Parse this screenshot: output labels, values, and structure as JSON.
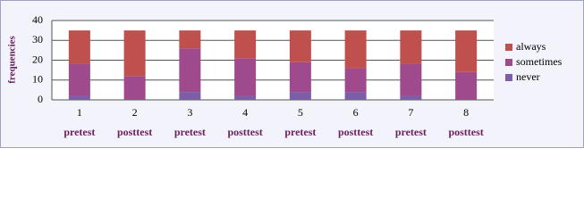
{
  "chart_data": {
    "type": "stacked_bar",
    "y_label": "frequencies",
    "categories": [
      "1",
      "2",
      "3",
      "4",
      "5",
      "6",
      "7",
      "8"
    ],
    "sublabels": [
      "pretest",
      "posttest",
      "pretest",
      "posttest",
      "pretest",
      "posttest",
      "pretest",
      "posttest"
    ],
    "series": [
      {
        "name": "never",
        "color": "#7b5ea7",
        "values": [
          2,
          0,
          4,
          2,
          4,
          4,
          2,
          0
        ]
      },
      {
        "name": "sometimes",
        "color": "#9e4a8c",
        "values": [
          16,
          12,
          22,
          19,
          15,
          12,
          16,
          14
        ]
      },
      {
        "name": "always",
        "color": "#c0504d",
        "values": [
          17,
          23,
          9,
          14,
          16,
          19,
          17,
          21
        ]
      }
    ],
    "ylim": [
      0,
      40
    ],
    "yticks": [
      0,
      10,
      20,
      30,
      40
    ],
    "grid": true
  }
}
